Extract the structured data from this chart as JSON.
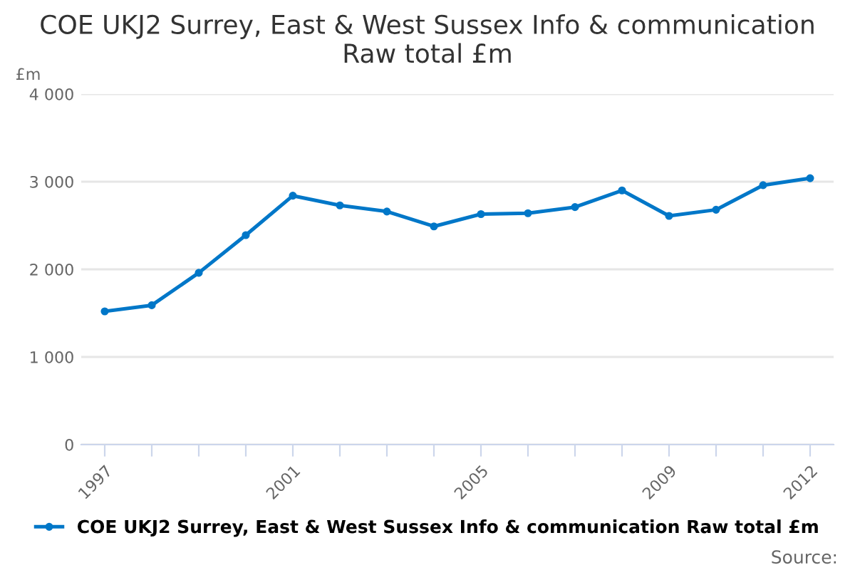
{
  "chart_data": {
    "type": "line",
    "title": "COE UKJ2 Surrey, East & West Sussex Info & communication\nRaw total £m",
    "ylabel": "£m",
    "categories": [
      "1997",
      null,
      null,
      null,
      "2001",
      null,
      null,
      null,
      "2005",
      null,
      null,
      null,
      "2009",
      null,
      null,
      "2012"
    ],
    "series": [
      {
        "name": "COE UKJ2 Surrey, East & West Sussex Info & communication Raw total £m",
        "color": "#0077c8",
        "values": [
          1520,
          1590,
          1960,
          2390,
          2840,
          2730,
          2660,
          2490,
          2630,
          2640,
          2710,
          2900,
          2610,
          2680,
          2960,
          3040
        ]
      }
    ],
    "ylim": [
      0,
      4000
    ],
    "yticks": [
      0,
      {
        "value": 1000,
        "label": "1 000"
      },
      {
        "value": 2000,
        "label": "2 000"
      },
      {
        "value": 3000,
        "label": "3 000"
      },
      {
        "value": 4000,
        "label": "4 000"
      }
    ],
    "grid": "y",
    "legend": "bottom",
    "marker": "circle",
    "line_style": "solid",
    "annotations": [
      "Source:"
    ]
  }
}
